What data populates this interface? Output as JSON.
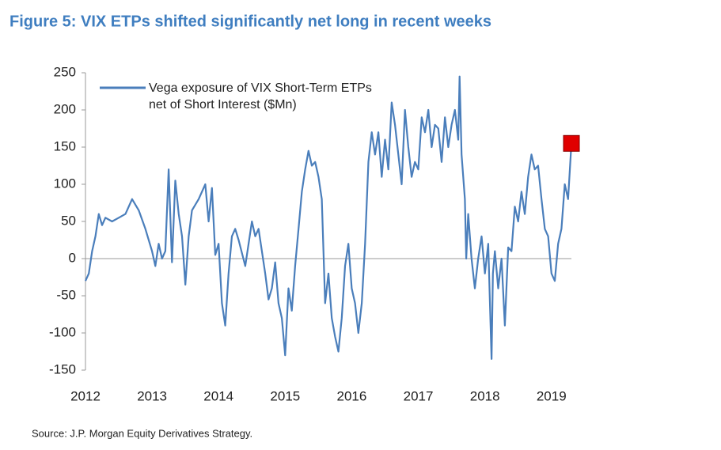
{
  "chart_data": {
    "type": "line",
    "title": "Figure 5: VIX ETPs shifted significantly net long in recent weeks",
    "source": "Source: J.P. Morgan Equity Derivatives Strategy.",
    "x": [
      2012.0,
      2012.05,
      2012.1,
      2012.15,
      2012.2,
      2012.25,
      2012.3,
      2012.4,
      2012.5,
      2012.6,
      2012.7,
      2012.8,
      2012.9,
      2013.0,
      2013.05,
      2013.1,
      2013.15,
      2013.2,
      2013.25,
      2013.3,
      2013.35,
      2013.4,
      2013.45,
      2013.5,
      2013.55,
      2013.6,
      2013.7,
      2013.8,
      2013.85,
      2013.9,
      2013.95,
      2014.0,
      2014.05,
      2014.1,
      2014.15,
      2014.2,
      2014.25,
      2014.3,
      2014.4,
      2014.45,
      2014.5,
      2014.55,
      2014.6,
      2014.7,
      2014.75,
      2014.8,
      2014.85,
      2014.9,
      2014.95,
      2015.0,
      2015.05,
      2015.1,
      2015.15,
      2015.2,
      2015.25,
      2015.3,
      2015.35,
      2015.4,
      2015.45,
      2015.5,
      2015.55,
      2015.6,
      2015.65,
      2015.7,
      2015.75,
      2015.8,
      2015.85,
      2015.9,
      2015.95,
      2016.0,
      2016.05,
      2016.1,
      2016.15,
      2016.2,
      2016.25,
      2016.3,
      2016.35,
      2016.4,
      2016.45,
      2016.5,
      2016.55,
      2016.6,
      2016.65,
      2016.7,
      2016.75,
      2016.8,
      2016.85,
      2016.9,
      2016.95,
      2017.0,
      2017.05,
      2017.1,
      2017.15,
      2017.2,
      2017.25,
      2017.3,
      2017.35,
      2017.4,
      2017.45,
      2017.5,
      2017.55,
      2017.6,
      2017.62,
      2017.65,
      2017.7,
      2017.72,
      2017.75,
      2017.8,
      2017.85,
      2017.9,
      2017.95,
      2018.0,
      2018.05,
      2018.07,
      2018.1,
      2018.12,
      2018.15,
      2018.2,
      2018.25,
      2018.3,
      2018.35,
      2018.4,
      2018.45,
      2018.5,
      2018.55,
      2018.6,
      2018.65,
      2018.7,
      2018.75,
      2018.8,
      2018.85,
      2018.9,
      2018.95,
      2019.0,
      2019.05,
      2019.1,
      2019.15,
      2019.2,
      2019.25,
      2019.3
    ],
    "series": [
      {
        "name": "Vega exposure of VIX Short-Term ETPs net of Short Interest ($Mn)",
        "color": "#4a7ebb",
        "values": [
          -30,
          -20,
          10,
          30,
          60,
          45,
          55,
          50,
          55,
          60,
          80,
          65,
          40,
          10,
          -10,
          20,
          0,
          10,
          120,
          -5,
          105,
          60,
          30,
          -35,
          30,
          65,
          80,
          100,
          50,
          95,
          5,
          20,
          -60,
          -90,
          -20,
          30,
          40,
          25,
          -10,
          20,
          50,
          30,
          40,
          -20,
          -55,
          -40,
          -5,
          -60,
          -80,
          -130,
          -40,
          -70,
          -10,
          40,
          90,
          120,
          145,
          125,
          130,
          110,
          80,
          -60,
          -20,
          -80,
          -105,
          -125,
          -80,
          -10,
          20,
          -40,
          -60,
          -100,
          -60,
          20,
          130,
          170,
          140,
          170,
          110,
          160,
          120,
          210,
          180,
          140,
          100,
          200,
          150,
          110,
          130,
          120,
          190,
          170,
          200,
          150,
          180,
          175,
          130,
          190,
          150,
          180,
          200,
          160,
          245,
          140,
          80,
          0,
          60,
          0,
          -40,
          0,
          30,
          -20,
          20,
          -40,
          -135,
          -20,
          10,
          -40,
          0,
          -90,
          15,
          10,
          70,
          50,
          90,
          60,
          110,
          140,
          120,
          125,
          80,
          40,
          30,
          -20,
          -30,
          20,
          40,
          100,
          80,
          155
        ]
      }
    ],
    "highlight_last_color": "#e00000",
    "xlim": [
      2012,
      2019.3
    ],
    "xticks": [
      2012,
      2013,
      2014,
      2015,
      2016,
      2017,
      2018,
      2019
    ],
    "ylim": [
      -150,
      250
    ],
    "yticks": [
      -150,
      -100,
      -50,
      0,
      50,
      100,
      150,
      200,
      250
    ]
  }
}
